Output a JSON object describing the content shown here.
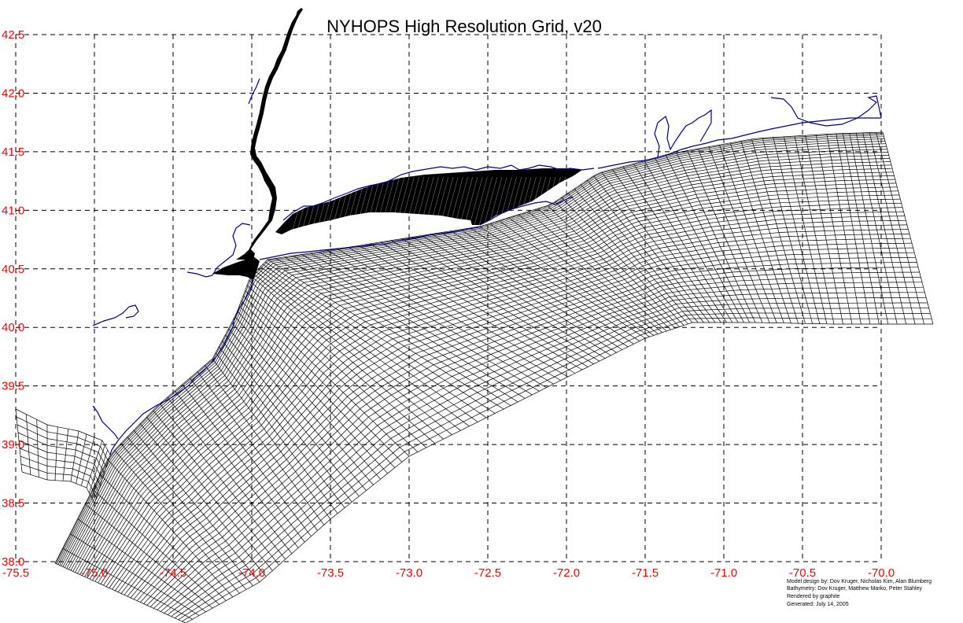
{
  "title": "NYHOPS High Resolution Grid, v20",
  "axes": {
    "x_ticks": [
      "-75.5",
      "-75.0",
      "-74.5",
      "-74.0",
      "-73.5",
      "-73.0",
      "-72.5",
      "-72.0",
      "-71.5",
      "-71.0",
      "-70.5",
      "-70.0"
    ],
    "y_ticks": [
      "42.5",
      "42.0",
      "41.5",
      "41.0",
      "40.5",
      "40.0",
      "39.5",
      "39.0",
      "38.5",
      "38.0"
    ],
    "x_range": [
      -75.5,
      -70.0
    ],
    "y_range": [
      38.0,
      42.5
    ],
    "grid": true,
    "grid_style": "dashed"
  },
  "credits": [
    "Model design by: Dov Kruger, Nicholas Kim, Alan Blumberg",
    "Bathymetry: Dov Kruger, Matthew Marko, Peter Stahley",
    "Rendered by graphite",
    "Generated: July 14, 2005"
  ],
  "colors": {
    "tick_label": "#ff0000",
    "title": "#000000",
    "coastline": "#00008b",
    "mesh": "#000000",
    "gridline": "#000000",
    "background": "#ffffff"
  }
}
